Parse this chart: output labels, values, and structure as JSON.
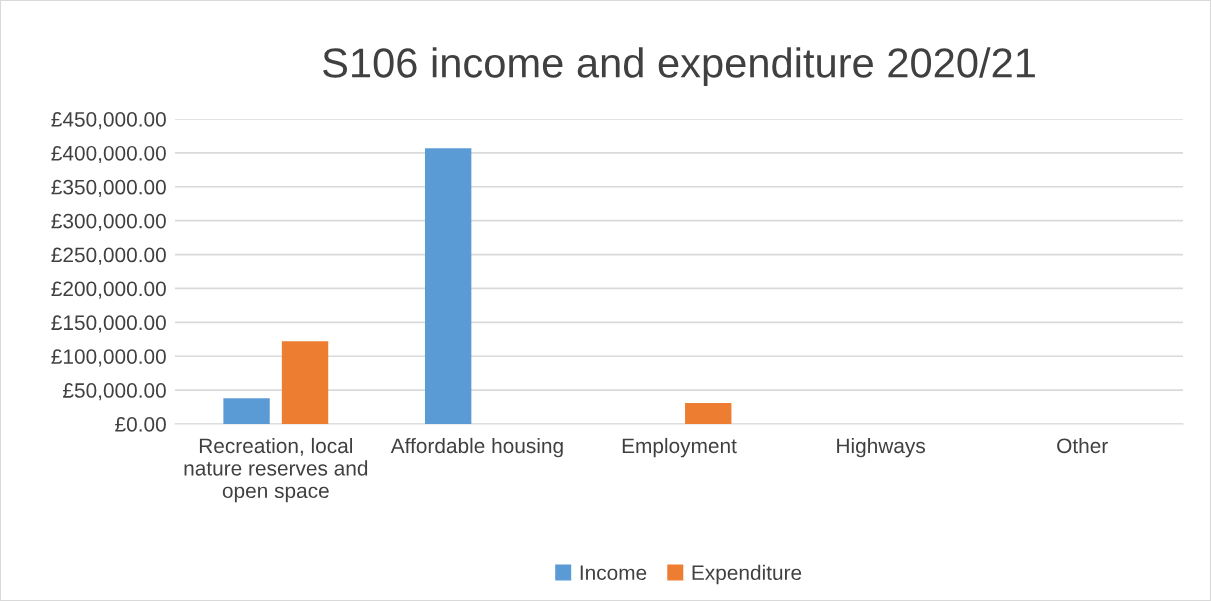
{
  "chart_data": {
    "type": "bar",
    "title": "S106 income and expenditure 2020/21",
    "categories": [
      "Recreation, local\nnature reserves and\nopen space",
      "Affordable housing",
      "Employment",
      "Highways",
      "Other"
    ],
    "series": [
      {
        "name": "Income",
        "color": "#5b9bd5",
        "values": [
          38000,
          407000,
          0,
          0,
          0
        ]
      },
      {
        "name": "Expenditure",
        "color": "#ed7d31",
        "values": [
          122000,
          0,
          31000,
          0,
          0
        ]
      }
    ],
    "ylim": [
      0,
      450000
    ],
    "yticks": [
      {
        "value": 0,
        "label": "£0.00"
      },
      {
        "value": 50000,
        "label": "£50,000.00"
      },
      {
        "value": 100000,
        "label": "£100,000.00"
      },
      {
        "value": 150000,
        "label": "£150,000.00"
      },
      {
        "value": 200000,
        "label": "£200,000.00"
      },
      {
        "value": 250000,
        "label": "£250,000.00"
      },
      {
        "value": 300000,
        "label": "£300,000.00"
      },
      {
        "value": 350000,
        "label": "£350,000.00"
      },
      {
        "value": 400000,
        "label": "£400,000.00"
      },
      {
        "value": 450000,
        "label": "£450,000.00"
      }
    ],
    "grid": "y",
    "legend": "bottom"
  }
}
